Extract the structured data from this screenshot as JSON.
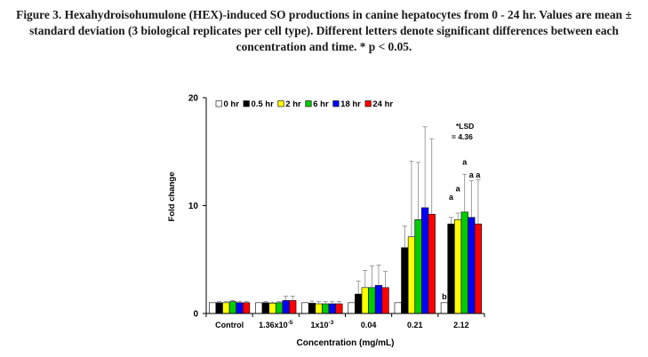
{
  "caption": "Figure 3. Hexahydroisohumulone (HEX)-induced SO productions in canine hepatocytes from 0 - 24 hr. Values are mean ± standard deviation (3 biological replicates per cell type). Different letters denote significant differences between each concentration and time. * p < 0.05.",
  "chart_data": {
    "type": "bar",
    "xlabel": "Concentration (mg/mL)",
    "ylabel": "Fold change",
    "ylim": [
      0,
      20
    ],
    "yticks": [
      0,
      10,
      20
    ],
    "categories": [
      {
        "base": "Control",
        "exp": ""
      },
      {
        "base": "1.36x10",
        "exp": "-5"
      },
      {
        "base": "1x10",
        "exp": "-3"
      },
      {
        "base": "0.04",
        "exp": ""
      },
      {
        "base": "0.21",
        "exp": ""
      },
      {
        "base": "2.12",
        "exp": ""
      }
    ],
    "legend_position": "top",
    "series": [
      {
        "name": "0 hr",
        "color": "#ffffff",
        "values": [
          1.0,
          1.0,
          1.0,
          1.0,
          1.0,
          1.0
        ],
        "errors": [
          0.0,
          0.0,
          0.0,
          0.0,
          0.0,
          0.0
        ]
      },
      {
        "name": "0.5 hr",
        "color": "#000000",
        "values": [
          1.0,
          1.0,
          0.95,
          1.8,
          6.1,
          8.3
        ],
        "errors": [
          0.1,
          0.1,
          0.2,
          1.2,
          2.0,
          0.6
        ]
      },
      {
        "name": "2 hr",
        "color": "#ffff00",
        "values": [
          1.0,
          0.95,
          0.9,
          2.4,
          7.1,
          8.7
        ],
        "errors": [
          0.1,
          0.1,
          0.2,
          1.6,
          7.0,
          0.6
        ]
      },
      {
        "name": "6 hr",
        "color": "#00cc00",
        "values": [
          1.1,
          1.0,
          0.9,
          2.4,
          8.7,
          9.4
        ],
        "errors": [
          0.1,
          0.1,
          0.2,
          2.0,
          5.3,
          3.5
        ]
      },
      {
        "name": "18 hr",
        "color": "#0000ff",
        "values": [
          1.0,
          1.2,
          0.9,
          2.6,
          9.8,
          8.9
        ],
        "errors": [
          0.1,
          0.4,
          0.2,
          1.9,
          7.5,
          3.4
        ]
      },
      {
        "name": "24 hr",
        "color": "#ff0000",
        "values": [
          1.0,
          1.2,
          0.9,
          2.4,
          9.2,
          8.3
        ],
        "errors": [
          0.1,
          0.4,
          0.2,
          1.5,
          7.0,
          4.1
        ]
      }
    ],
    "annotations": {
      "lsd_line1": "*LSD",
      "lsd_line2": "= 4.36",
      "letters": [
        {
          "category": 5,
          "series": 0,
          "text": "b"
        },
        {
          "category": 5,
          "series": 1,
          "text": "a"
        },
        {
          "category": 5,
          "series": 2,
          "text": "a"
        },
        {
          "category": 5,
          "series": 3,
          "text": "a"
        },
        {
          "category": 5,
          "series": 4,
          "text": "a"
        },
        {
          "category": 5,
          "series": 5,
          "text": "a"
        }
      ]
    }
  }
}
